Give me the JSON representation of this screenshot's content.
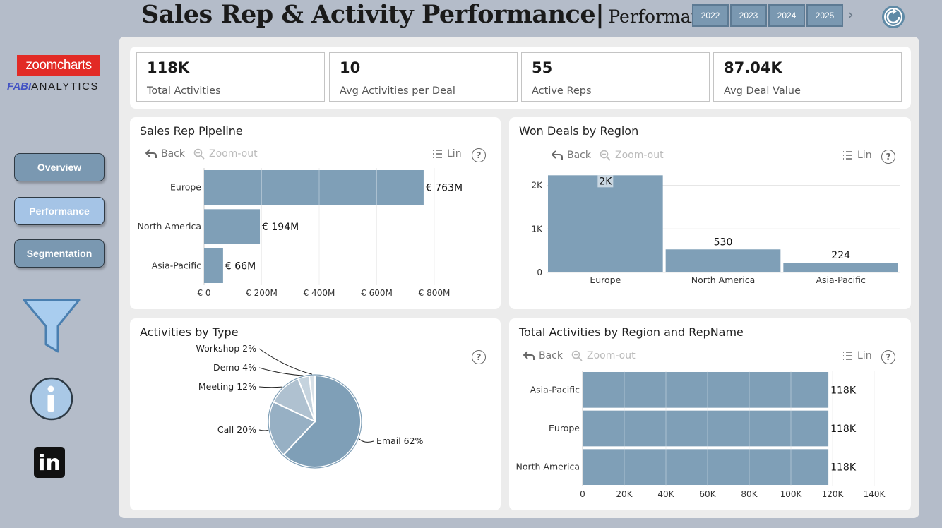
{
  "header": {
    "title": "Sales Rep & Activity Performance|",
    "subtitle": "Performance",
    "years": [
      "2022",
      "2023",
      "2024",
      "2025"
    ],
    "next_glyph": "›"
  },
  "sidebar": {
    "zoomcharts_logo": "zoomcharts",
    "fabi_logo_mark": "FABI",
    "fabi_logo_text": "ANALYTICS",
    "nav": [
      "Overview",
      "Performance",
      "Segmentation"
    ],
    "linkedin_label": "in"
  },
  "kpis": [
    {
      "value": "118K",
      "label": "Total Activities"
    },
    {
      "value": "10",
      "label": "Avg Activities per Deal"
    },
    {
      "value": "55",
      "label": "Active Reps"
    },
    {
      "value": "87.04K",
      "label": "Avg Deal Value"
    }
  ],
  "toolbar": {
    "back": "Back",
    "zoom_out": "Zoom-out",
    "lin": "Lin",
    "help": "?"
  },
  "colors": {
    "bar": "#7f9fb7",
    "accent": "#7a98b1"
  },
  "chart_data": [
    {
      "type": "bar",
      "orientation": "horizontal",
      "title": "Sales Rep Pipeline",
      "categories": [
        "Europe",
        "North America",
        "Asia-Pacific"
      ],
      "values": [
        763,
        194,
        66
      ],
      "value_labels": [
        "€ 763M",
        "€ 194M",
        "€ 66M"
      ],
      "xlim": [
        0,
        800
      ],
      "x_ticks": [
        0,
        200,
        400,
        600,
        800
      ],
      "x_tick_labels": [
        "€ 0",
        "€ 200M",
        "€ 400M",
        "€ 600M",
        "€ 800M"
      ]
    },
    {
      "type": "bar",
      "orientation": "vertical",
      "title": "Won Deals by Region",
      "categories": [
        "Europe",
        "North America",
        "Asia-Pacific"
      ],
      "values": [
        2230,
        530,
        224
      ],
      "value_labels": [
        "2K",
        "530",
        "224"
      ],
      "ylim": [
        0,
        2300
      ],
      "y_ticks": [
        0,
        1000,
        2000
      ],
      "y_tick_labels": [
        "0",
        "1K",
        "2K"
      ]
    },
    {
      "type": "pie",
      "title": "Activities by Type",
      "slices": [
        {
          "label": "Email",
          "value": 62,
          "display": "Email 62%"
        },
        {
          "label": "Call",
          "value": 20,
          "display": "Call 20%"
        },
        {
          "label": "Meeting",
          "value": 12,
          "display": "Meeting 12%"
        },
        {
          "label": "Demo",
          "value": 4,
          "display": "Demo 4%"
        },
        {
          "label": "Workshop",
          "value": 2,
          "display": "Workshop 2%"
        }
      ],
      "colors": [
        "#7f9fb7",
        "#97b0c4",
        "#afc1d0",
        "#c5d3de",
        "#d8e1e8"
      ]
    },
    {
      "type": "bar",
      "orientation": "horizontal",
      "title": "Total Activities by Region and RepName",
      "categories": [
        "Asia-Pacific",
        "Europe",
        "North America"
      ],
      "values": [
        118,
        118,
        118
      ],
      "value_labels": [
        "118K",
        "118K",
        "118K"
      ],
      "xlim": [
        0,
        140
      ],
      "x_ticks": [
        0,
        20,
        40,
        60,
        80,
        100,
        120,
        140
      ],
      "x_tick_labels": [
        "0",
        "20K",
        "40K",
        "60K",
        "80K",
        "100K",
        "120K",
        "140K"
      ]
    }
  ]
}
